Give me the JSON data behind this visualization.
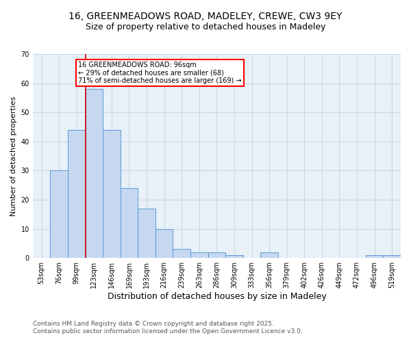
{
  "title1": "16, GREENMEADOWS ROAD, MADELEY, CREWE, CW3 9EY",
  "title2": "Size of property relative to detached houses in Madeley",
  "xlabel": "Distribution of detached houses by size in Madeley",
  "ylabel": "Number of detached properties",
  "bin_labels": [
    "53sqm",
    "76sqm",
    "99sqm",
    "123sqm",
    "146sqm",
    "169sqm",
    "193sqm",
    "216sqm",
    "239sqm",
    "263sqm",
    "286sqm",
    "309sqm",
    "333sqm",
    "356sqm",
    "379sqm",
    "402sqm",
    "426sqm",
    "449sqm",
    "472sqm",
    "496sqm",
    "519sqm"
  ],
  "bar_heights": [
    0,
    30,
    44,
    58,
    44,
    24,
    17,
    10,
    3,
    2,
    2,
    1,
    0,
    2,
    0,
    0,
    0,
    0,
    0,
    1,
    1
  ],
  "bar_color": "#c5d8f0",
  "bar_edge_color": "#5b9bd5",
  "red_line_index": 2,
  "annotation_text": "16 GREENMEADOWS ROAD: 96sqm\n← 29% of detached houses are smaller (68)\n71% of semi-detached houses are larger (169) →",
  "annotation_box_color": "white",
  "annotation_box_edge_color": "red",
  "red_line_color": "#cc0000",
  "ylim": [
    0,
    70
  ],
  "yticks": [
    0,
    10,
    20,
    30,
    40,
    50,
    60,
    70
  ],
  "grid_color": "#c8d8e8",
  "footer1": "Contains HM Land Registry data © Crown copyright and database right 2025.",
  "footer2": "Contains public sector information licensed under the Open Government Licence v3.0.",
  "bg_color": "#e8f0f8",
  "title1_fontsize": 10,
  "title2_fontsize": 9,
  "xlabel_fontsize": 9,
  "ylabel_fontsize": 8,
  "tick_fontsize": 7,
  "footer_fontsize": 6.5,
  "annot_fontsize": 7
}
